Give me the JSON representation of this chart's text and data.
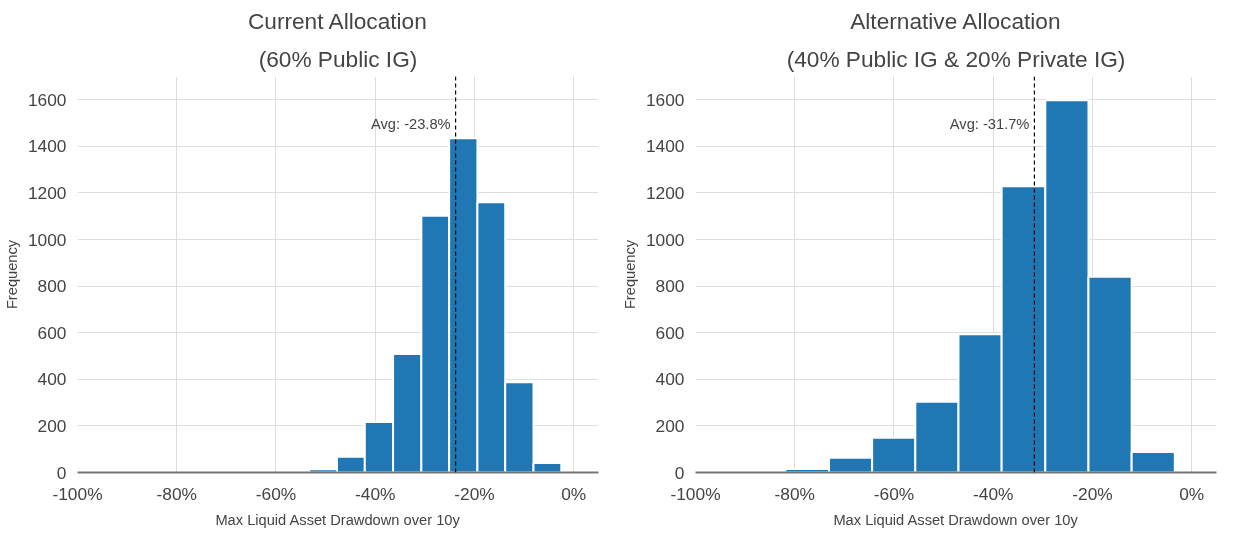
{
  "chart_data": [
    {
      "type": "histogram",
      "title": "Current Allocation",
      "subtitle": "(60% Public IG)",
      "xlabel": "Max Liquid Asset Drawdown over 10y",
      "ylabel": "Frequency",
      "bins": [
        -53.3,
        -47.7,
        -42.1,
        -36.4,
        -30.7,
        -25.1,
        -19.4,
        -13.8,
        -8.1,
        -2.5
      ],
      "values": [
        14,
        68,
        217,
        509,
        1102,
        1435,
        1160,
        387,
        41
      ],
      "color": "#1f77b4",
      "xlim": [
        -100,
        5
      ],
      "xticks": [
        {
          "value": -100,
          "label": "-100%"
        },
        {
          "value": -80,
          "label": "-80%"
        },
        {
          "value": -60,
          "label": "-60%"
        },
        {
          "value": -40,
          "label": "-40%"
        },
        {
          "value": -20,
          "label": "-20%"
        },
        {
          "value": 0,
          "label": "0%"
        }
      ],
      "ylim": [
        0,
        1700
      ],
      "yticks": [
        0,
        200,
        400,
        600,
        800,
        1000,
        1200,
        1400,
        1600
      ],
      "ref_lines": [
        {
          "axis": "x",
          "value": -23.8,
          "label": "Avg: -23.8%",
          "color": "#000000",
          "line_style": "dashed"
        }
      ],
      "grid": true
    },
    {
      "type": "histogram",
      "title": "Alternative Allocation",
      "subtitle": "(40% Public IG & 20% Private IG)",
      "xlabel": "Max Liquid Asset Drawdown over 10y",
      "ylabel": "Frequency",
      "bins": [
        -81.9,
        -73.1,
        -64.4,
        -55.7,
        -47.0,
        -38.3,
        -29.5,
        -20.8,
        -12.1,
        -3.4
      ],
      "values": [
        15,
        63,
        149,
        304,
        594,
        1229,
        1598,
        840,
        88
      ],
      "color": "#1f77b4",
      "xlim": [
        -100,
        5
      ],
      "xticks": [
        {
          "value": -100,
          "label": "-100%"
        },
        {
          "value": -80,
          "label": "-80%"
        },
        {
          "value": -60,
          "label": "-60%"
        },
        {
          "value": -40,
          "label": "-40%"
        },
        {
          "value": -20,
          "label": "-20%"
        },
        {
          "value": 0,
          "label": "0%"
        }
      ],
      "ylim": [
        0,
        1700
      ],
      "yticks": [
        0,
        200,
        400,
        600,
        800,
        1000,
        1200,
        1400,
        1600
      ],
      "ref_lines": [
        {
          "axis": "x",
          "value": -31.7,
          "label": "Avg: -31.7%",
          "color": "#000000",
          "line_style": "dashed"
        }
      ],
      "grid": true
    }
  ]
}
